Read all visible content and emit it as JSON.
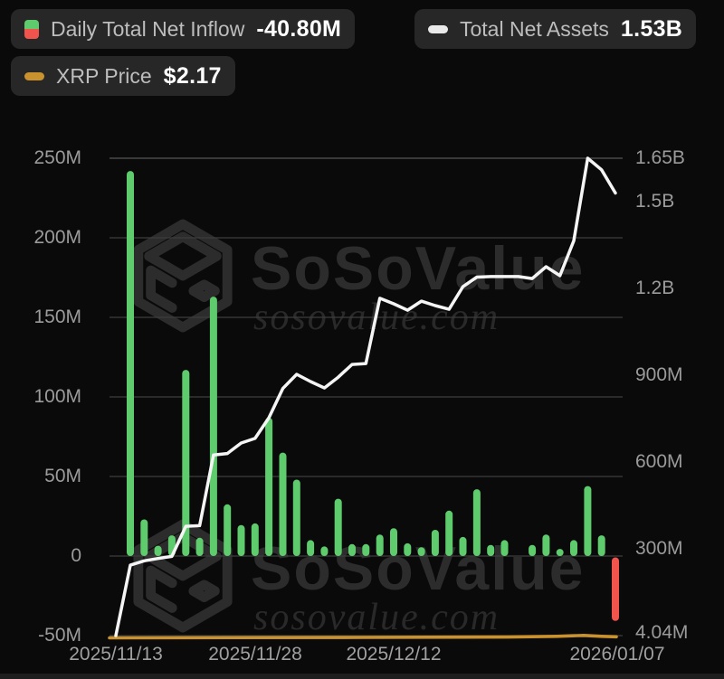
{
  "legend": {
    "inflow": {
      "label": "Daily Total Net Inflow",
      "value": "-40.80M",
      "icon": "green-red-split-square"
    },
    "assets": {
      "label": "Total Net Assets",
      "value": "1.53B",
      "icon": "white-dash"
    },
    "price": {
      "label": "XRP Price",
      "value": "$2.17",
      "icon": "orange-dash"
    }
  },
  "watermark": {
    "brand": "SoSoValue",
    "domain": "sosovalue.com"
  },
  "colors": {
    "background": "#0a0a0a",
    "bar_positive": "#5ecb6d",
    "bar_negative": "#f0544c",
    "assets_line": "#f5f5f5",
    "price_line": "#c9922e",
    "grid": "#3d3d3d",
    "grid_top": "#565656",
    "tick_text": "#9b9b9b",
    "chip_bg": "#272727",
    "chip_label": "#bdbdbd",
    "chip_value": "#ffffff",
    "watermark": "#2c2c2c"
  },
  "chart_data": {
    "type": "bar",
    "legend_position": "top",
    "grid": true,
    "num_slots": 36,
    "x_axis": {
      "tick_labels": [
        "2025/11/13",
        "2025/11/28",
        "2025/12/12",
        "2026/01/07"
      ],
      "tick_slot_index": [
        0,
        10,
        20,
        35
      ]
    },
    "left_axis": {
      "ticks": [
        "250M",
        "200M",
        "150M",
        "100M",
        "50M",
        "0",
        "-50M"
      ],
      "tick_values_M": [
        250,
        200,
        150,
        100,
        50,
        0,
        -50
      ],
      "range_M": [
        -50,
        250
      ],
      "series": "Daily Total Net Inflow"
    },
    "right_axis": {
      "ticks": [
        "1.65B",
        "1.5B",
        "1.2B",
        "900M",
        "600M",
        "300M",
        "4.04M"
      ],
      "tick_values_M": [
        1650,
        1500,
        1200,
        900,
        600,
        300,
        4.04
      ],
      "range_M": [
        4.04,
        1650
      ],
      "series": "Total Net Assets"
    },
    "series": [
      {
        "name": "Daily Total Net Inflow",
        "type": "bar",
        "axis": "left",
        "unit": "USD millions",
        "latest_label": "-40.80M",
        "values_M": [
          242,
          23,
          6.5,
          13,
          117,
          11.5,
          163,
          32.5,
          19.5,
          20.5,
          87,
          65,
          48,
          10,
          6,
          36,
          7.5,
          7.5,
          13.5,
          17.5,
          8,
          5.5,
          16.5,
          28.5,
          12,
          42,
          7,
          10,
          0,
          7,
          13.5,
          4.5,
          10,
          44,
          13,
          -40.8
        ]
      },
      {
        "name": "Total Net Assets",
        "type": "line",
        "axis": "right",
        "unit": "USD millions",
        "latest_label": "1.53B",
        "start_value_M": 4.04,
        "values_M": [
          247,
          262,
          270,
          277,
          381,
          383,
          627,
          632,
          668,
          684,
          755,
          856,
          905,
          880,
          858,
          895,
          939,
          942,
          1167,
          1148,
          1126,
          1157,
          1142,
          1129,
          1207,
          1240,
          1242,
          1242,
          1242,
          1235,
          1276,
          1245,
          1365,
          1650,
          1610,
          1530
        ]
      },
      {
        "name": "XRP Price",
        "type": "line",
        "axis": "hidden",
        "latest_usd": 2.17,
        "shape": "flat-along-bottom"
      }
    ]
  }
}
